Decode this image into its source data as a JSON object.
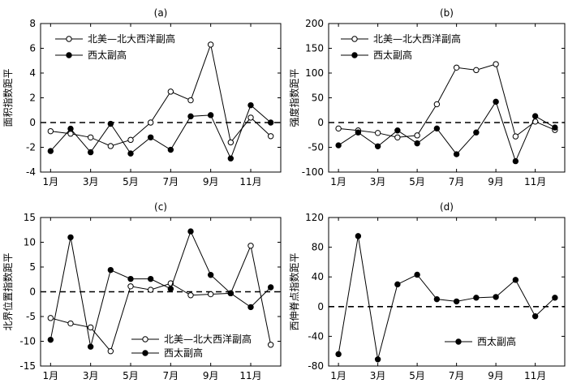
{
  "chart_data": [
    {
      "type": "line",
      "title": "(a)",
      "ylabel": "面积指数距平",
      "ylim": [
        -4,
        8
      ],
      "yticks": [
        -4,
        -2,
        0,
        2,
        4,
        6,
        8
      ],
      "x": [
        1,
        2,
        3,
        4,
        5,
        6,
        7,
        8,
        9,
        10,
        11,
        12
      ],
      "xticks": [
        1,
        3,
        5,
        7,
        9,
        11
      ],
      "xtick_labels": [
        "1月",
        "3月",
        "5月",
        "7月",
        "9月",
        "11月"
      ],
      "zero_line": true,
      "legend_position": "top-left",
      "series": [
        {
          "name": "北美—北大西洋副高",
          "marker": "open-circle",
          "values": [
            -0.7,
            -0.9,
            -1.2,
            -1.9,
            -1.4,
            0.0,
            2.5,
            1.8,
            6.3,
            -1.6,
            0.4,
            -1.1
          ]
        },
        {
          "name": "西太副高",
          "marker": "filled-circle",
          "values": [
            -2.3,
            -0.5,
            -2.4,
            -0.1,
            -2.5,
            -1.2,
            -2.2,
            0.5,
            0.6,
            -2.9,
            1.4,
            0.0
          ]
        }
      ]
    },
    {
      "type": "line",
      "title": "(b)",
      "ylabel": "强度指数距平",
      "ylim": [
        -100,
        200
      ],
      "yticks": [
        -100,
        -50,
        0,
        50,
        100,
        150,
        200
      ],
      "x": [
        1,
        2,
        3,
        4,
        5,
        6,
        7,
        8,
        9,
        10,
        11,
        12
      ],
      "xticks": [
        1,
        3,
        5,
        7,
        9,
        11
      ],
      "xtick_labels": [
        "1月",
        "3月",
        "5月",
        "7月",
        "9月",
        "11月"
      ],
      "zero_line": true,
      "legend_position": "top-left",
      "series": [
        {
          "name": "北美—北大西洋副高",
          "marker": "open-circle",
          "values": [
            -12,
            -16,
            -21,
            -30,
            -26,
            37,
            111,
            106,
            118,
            -28,
            2,
            -15
          ]
        },
        {
          "name": "西太副高",
          "marker": "filled-circle",
          "values": [
            -46,
            -20,
            -48,
            -16,
            -42,
            -12,
            -64,
            -20,
            42,
            -78,
            13,
            -10
          ]
        }
      ]
    },
    {
      "type": "line",
      "title": "(c)",
      "ylabel": "北界位置指数距平",
      "ylim": [
        -15,
        15
      ],
      "yticks": [
        -15,
        -10,
        -5,
        0,
        5,
        10,
        15
      ],
      "x": [
        1,
        2,
        3,
        4,
        5,
        6,
        7,
        8,
        9,
        10,
        11,
        12
      ],
      "xticks": [
        1,
        3,
        5,
        7,
        9,
        11
      ],
      "xtick_labels": [
        "1月",
        "3月",
        "5月",
        "7月",
        "9月",
        "11月"
      ],
      "zero_line": true,
      "legend_position": "bottom-center",
      "series": [
        {
          "name": "北美—北大西洋副高",
          "marker": "open-circle",
          "values": [
            -5.3,
            -6.4,
            -7.2,
            -12.0,
            1.1,
            0.4,
            1.7,
            -0.7,
            -0.5,
            -0.3,
            9.3,
            -10.7
          ]
        },
        {
          "name": "西太副高",
          "marker": "filled-circle",
          "values": [
            -9.7,
            11.0,
            -11.1,
            4.4,
            2.6,
            2.6,
            0.6,
            12.2,
            3.4,
            -0.3,
            -3.1,
            0.9
          ]
        }
      ]
    },
    {
      "type": "line",
      "title": "(d)",
      "ylabel": "西伸脊点指数距平",
      "ylim": [
        -80,
        120
      ],
      "yticks": [
        -80,
        -40,
        0,
        40,
        80,
        120
      ],
      "x": [
        1,
        2,
        3,
        4,
        5,
        6,
        7,
        8,
        9,
        10,
        11,
        12
      ],
      "xticks": [
        1,
        3,
        5,
        7,
        9,
        11
      ],
      "xtick_labels": [
        "1月",
        "3月",
        "5月",
        "7月",
        "9月",
        "11月"
      ],
      "zero_line": true,
      "legend_position": "bottom-right",
      "series": [
        {
          "name": "西太副高",
          "marker": "filled-circle",
          "values": [
            -64,
            95,
            -71,
            30,
            43,
            10,
            7,
            12,
            13,
            36,
            -13,
            12
          ]
        }
      ]
    }
  ]
}
